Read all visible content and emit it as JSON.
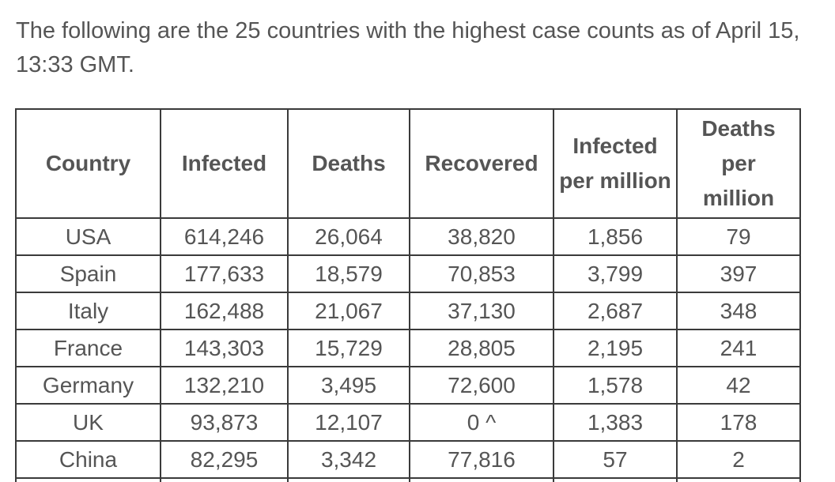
{
  "intro": {
    "line1": "The following are the 25 countries with the highest case counts as of April 15,",
    "line2": "13:33 GMT."
  },
  "table": {
    "headers": {
      "country": "Country",
      "infected": "Infected",
      "deaths": "Deaths",
      "recovered": "Recovered",
      "infected_pm_line1": "Infected",
      "infected_pm_line2": "per million",
      "deaths_pm_line1": "Deaths",
      "deaths_pm_line2": "per",
      "deaths_pm_line3": "million"
    },
    "rows": [
      {
        "country": "USA",
        "infected": "614,246",
        "deaths": "26,064",
        "recovered": "38,820",
        "infected_pm": "1,856",
        "deaths_pm": "79"
      },
      {
        "country": "Spain",
        "infected": "177,633",
        "deaths": "18,579",
        "recovered": "70,853",
        "infected_pm": "3,799",
        "deaths_pm": "397"
      },
      {
        "country": "Italy",
        "infected": "162,488",
        "deaths": "21,067",
        "recovered": "37,130",
        "infected_pm": "2,687",
        "deaths_pm": "348"
      },
      {
        "country": "France",
        "infected": "143,303",
        "deaths": "15,729",
        "recovered": "28,805",
        "infected_pm": "2,195",
        "deaths_pm": "241"
      },
      {
        "country": "Germany",
        "infected": "132,210",
        "deaths": "3,495",
        "recovered": "72,600",
        "infected_pm": "1,578",
        "deaths_pm": "42"
      },
      {
        "country": "UK",
        "infected": "93,873",
        "deaths": "12,107",
        "recovered": "0 ^",
        "infected_pm": "1,383",
        "deaths_pm": "178"
      },
      {
        "country": "China",
        "infected": "82,295",
        "deaths": "3,342",
        "recovered": "77,816",
        "infected_pm": "57",
        "deaths_pm": "2"
      }
    ]
  }
}
